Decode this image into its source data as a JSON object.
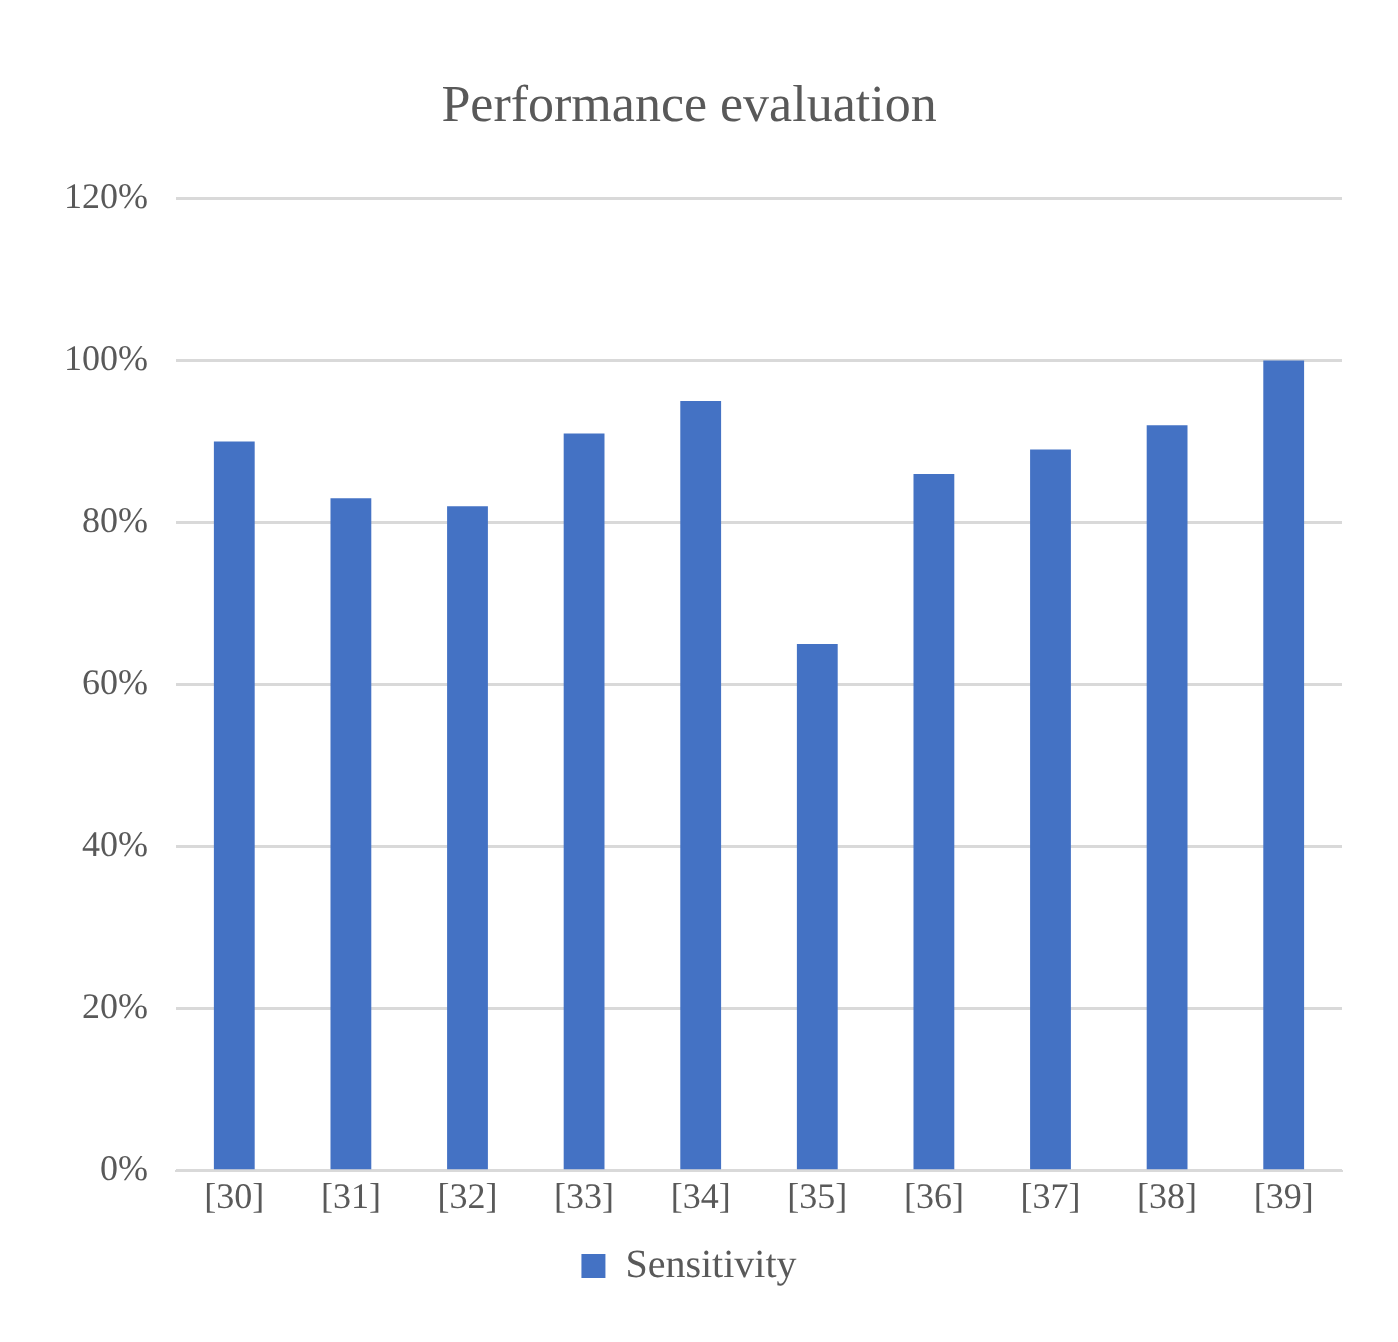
{
  "chart_data": {
    "type": "bar",
    "title": "Performance evaluation",
    "categories": [
      "[30]",
      "[31]",
      "[32]",
      "[33]",
      "[34]",
      "[35]",
      "[36]",
      "[37]",
      "[38]",
      "[39]"
    ],
    "series": [
      {
        "name": "Sensitivity",
        "color": "#4472c4",
        "values": [
          90,
          83,
          82,
          91,
          95,
          65,
          86,
          89,
          92,
          100
        ]
      }
    ],
    "ylim": [
      0,
      120
    ],
    "yticks": [
      {
        "value": 0,
        "label": "0%"
      },
      {
        "value": 20,
        "label": "20%"
      },
      {
        "value": 40,
        "label": "40%"
      },
      {
        "value": 60,
        "label": "60%"
      },
      {
        "value": 80,
        "label": "80%"
      },
      {
        "value": 100,
        "label": "100%"
      },
      {
        "value": 120,
        "label": "120%"
      }
    ],
    "grid": "y",
    "legend": "bottom"
  }
}
